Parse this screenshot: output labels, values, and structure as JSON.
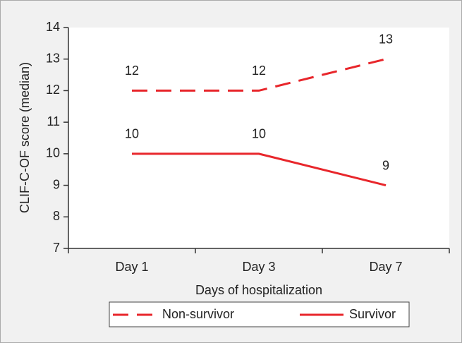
{
  "chart_data": {
    "type": "line",
    "x_label": "Days of hospitalization",
    "y_label": "CLIF-C-OF score (median)",
    "categories": [
      "Day 1",
      "Day 3",
      "Day 7"
    ],
    "series": [
      {
        "name": "Non-survivor",
        "color": "#e8262b",
        "line_style": "dashed",
        "values": [
          12,
          12,
          13
        ]
      },
      {
        "name": "Survivor",
        "color": "#e8262b",
        "line_style": "solid",
        "values": [
          10,
          10,
          9
        ]
      }
    ],
    "ylim": [
      7,
      14
    ],
    "yticks": [
      7,
      8,
      9,
      10,
      11,
      12,
      13,
      14
    ],
    "legend": "bottom",
    "data_labels": true
  }
}
